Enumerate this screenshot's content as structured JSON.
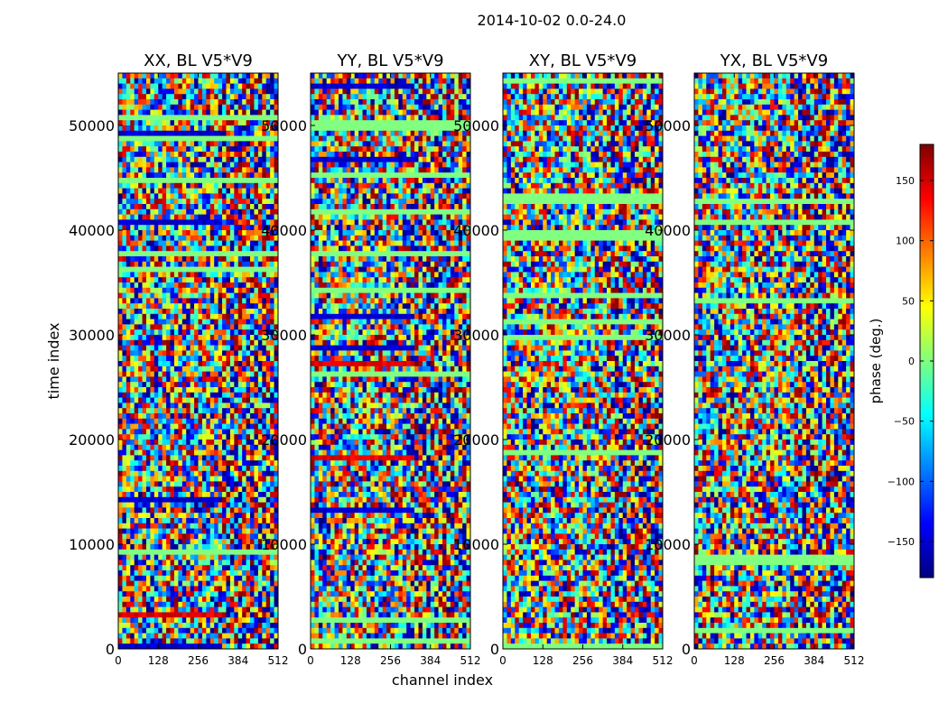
{
  "chart_data": {
    "type": "heatmap",
    "title": "2014-10-02 0.0-24.0",
    "xlabel": "channel index",
    "ylabel": "time index",
    "xlim": [
      0,
      512
    ],
    "ylim": [
      0,
      55000
    ],
    "x_ticks": [
      0,
      128,
      256,
      384,
      512
    ],
    "y_ticks": [
      0,
      10000,
      20000,
      30000,
      40000,
      50000
    ],
    "colormap": "jet",
    "colorbar": {
      "label": "phase (deg.)",
      "range": [
        -180,
        180
      ],
      "ticks": [
        -150,
        -100,
        -50,
        0,
        50,
        100,
        150
      ],
      "colors": [
        "#00007f",
        "#0000ff",
        "#007fff",
        "#00ffff",
        "#7fff7f",
        "#ffff00",
        "#ff7f00",
        "#ff0000",
        "#7f0000"
      ]
    },
    "panels": [
      {
        "title": "XX, BL V5*V9"
      },
      {
        "title": "YY, BL V5*V9"
      },
      {
        "title": "XY, BL V5*V9"
      },
      {
        "title": "YX, BL V5*V9"
      }
    ]
  }
}
